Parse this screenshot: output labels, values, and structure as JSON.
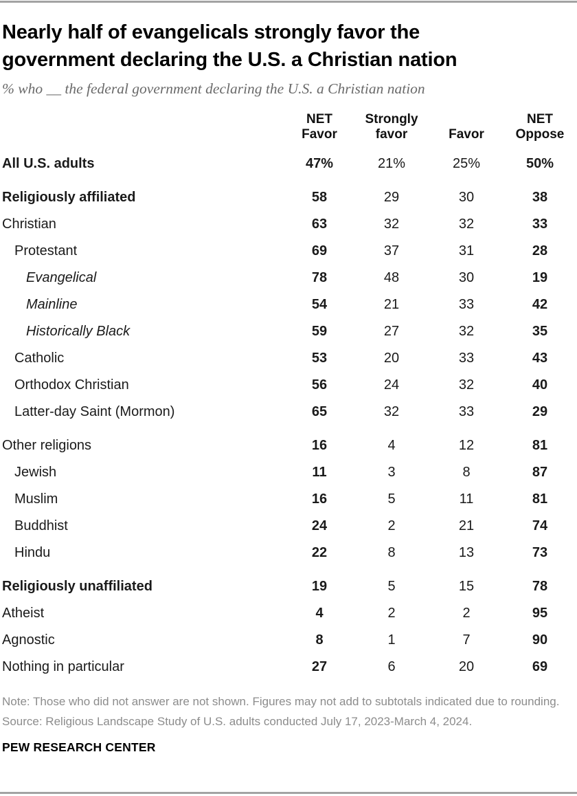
{
  "colors": {
    "rule_gray": "#a3a3a3",
    "title_black": "#000000",
    "subtitle_gray": "#696969",
    "table_text": "#1a1a1a",
    "footer_gray": "#8c8c8c"
  },
  "chart_data": {
    "type": "table",
    "title": "Nearly half of evangelicals strongly favor the\ngovernment declaring the U.S. a Christian nation",
    "subtitle": "% who __ the federal government declaring the U.S. a Christian nation",
    "columns": [
      "NET\nFavor",
      "Strongly\nfavor",
      "Favor",
      "NET\nOppose"
    ],
    "column_keys": [
      "net-favor",
      "strongly-favor",
      "favor",
      "net-oppose"
    ],
    "rows": [
      {
        "label": "All U.S. adults",
        "indent": 0,
        "bold": true,
        "italic": false,
        "gap": false,
        "values": [
          "47%",
          "21%",
          "25%",
          "50%"
        ]
      },
      {
        "label": "Religiously affiliated",
        "indent": 0,
        "bold": true,
        "italic": false,
        "gap": true,
        "values": [
          "58",
          "29",
          "30",
          "38"
        ]
      },
      {
        "label": "Christian",
        "indent": 0,
        "bold": false,
        "italic": false,
        "gap": false,
        "values": [
          "63",
          "32",
          "32",
          "33"
        ]
      },
      {
        "label": "Protestant",
        "indent": 1,
        "bold": false,
        "italic": false,
        "gap": false,
        "values": [
          "69",
          "37",
          "31",
          "28"
        ]
      },
      {
        "label": "Evangelical",
        "indent": 2,
        "bold": false,
        "italic": true,
        "gap": false,
        "values": [
          "78",
          "48",
          "30",
          "19"
        ]
      },
      {
        "label": "Mainline",
        "indent": 2,
        "bold": false,
        "italic": true,
        "gap": false,
        "values": [
          "54",
          "21",
          "33",
          "42"
        ]
      },
      {
        "label": "Historically Black",
        "indent": 2,
        "bold": false,
        "italic": true,
        "gap": false,
        "values": [
          "59",
          "27",
          "32",
          "35"
        ]
      },
      {
        "label": "Catholic",
        "indent": 1,
        "bold": false,
        "italic": false,
        "gap": false,
        "values": [
          "53",
          "20",
          "33",
          "43"
        ]
      },
      {
        "label": "Orthodox Christian",
        "indent": 1,
        "bold": false,
        "italic": false,
        "gap": false,
        "values": [
          "56",
          "24",
          "32",
          "40"
        ]
      },
      {
        "label": "Latter-day Saint (Mormon)",
        "indent": 1,
        "bold": false,
        "italic": false,
        "gap": false,
        "values": [
          "65",
          "32",
          "33",
          "29"
        ]
      },
      {
        "label": "Other religions",
        "indent": 0,
        "bold": false,
        "italic": false,
        "gap": true,
        "values": [
          "16",
          "4",
          "12",
          "81"
        ]
      },
      {
        "label": "Jewish",
        "indent": 1,
        "bold": false,
        "italic": false,
        "gap": false,
        "values": [
          "11",
          "3",
          "8",
          "87"
        ]
      },
      {
        "label": "Muslim",
        "indent": 1,
        "bold": false,
        "italic": false,
        "gap": false,
        "values": [
          "16",
          "5",
          "11",
          "81"
        ]
      },
      {
        "label": "Buddhist",
        "indent": 1,
        "bold": false,
        "italic": false,
        "gap": false,
        "values": [
          "24",
          "2",
          "21",
          "74"
        ]
      },
      {
        "label": "Hindu",
        "indent": 1,
        "bold": false,
        "italic": false,
        "gap": false,
        "values": [
          "22",
          "8",
          "13",
          "73"
        ]
      },
      {
        "label": "Religiously unaffiliated",
        "indent": 0,
        "bold": true,
        "italic": false,
        "gap": true,
        "values": [
          "19",
          "5",
          "15",
          "78"
        ]
      },
      {
        "label": "Atheist",
        "indent": 0,
        "bold": false,
        "italic": false,
        "gap": false,
        "values": [
          "4",
          "2",
          "2",
          "95"
        ]
      },
      {
        "label": "Agnostic",
        "indent": 0,
        "bold": false,
        "italic": false,
        "gap": false,
        "values": [
          "8",
          "1",
          "7",
          "90"
        ]
      },
      {
        "label": "Nothing in particular",
        "indent": 0,
        "bold": false,
        "italic": false,
        "gap": false,
        "values": [
          "27",
          "6",
          "20",
          "69"
        ]
      }
    ]
  },
  "footer": {
    "note": "Note: Those who did not answer are not shown. Figures may not add to subtotals indicated due to rounding.",
    "source": "Source: Religious Landscape Study of U.S. adults conducted July 17, 2023-March 4, 2024.",
    "brand": "PEW RESEARCH CENTER"
  }
}
